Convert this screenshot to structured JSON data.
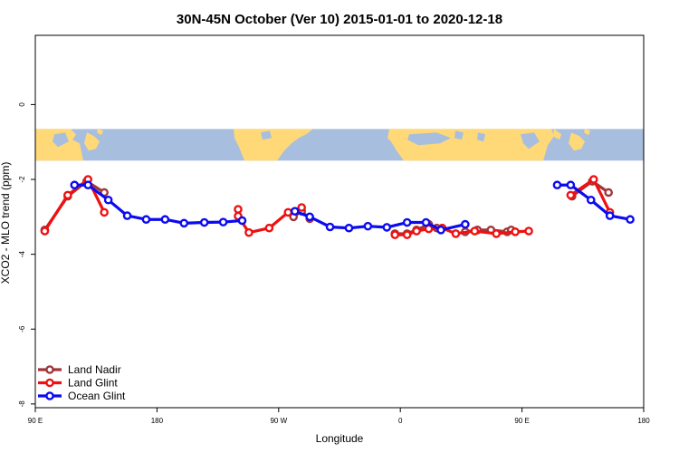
{
  "chart_data": {
    "type": "line",
    "title": "30N-45N October (Ver 10)   2015-01-01 to 2020-12-18",
    "xlabel": "Longitude",
    "ylabel": "XCO2 - MLO trend (ppm)",
    "xlim": [
      90,
      540
    ],
    "ylim": [
      -8.1,
      1.85
    ],
    "x_ticks": [
      {
        "value": 90,
        "label": "90 E"
      },
      {
        "value": 180,
        "label": "180"
      },
      {
        "value": 270,
        "label": "90 W"
      },
      {
        "value": 360,
        "label": "0"
      },
      {
        "value": 450,
        "label": "90 E"
      },
      {
        "value": 540,
        "label": "180"
      }
    ],
    "y_ticks": [
      {
        "value": 0,
        "label": "0"
      },
      {
        "value": -2,
        "label": "-2"
      },
      {
        "value": -4,
        "label": "-4"
      },
      {
        "value": -6,
        "label": "-6"
      },
      {
        "value": -8,
        "label": "-8"
      }
    ],
    "map_band": {
      "lat_range": "30N-45N",
      "y_top": -0.65,
      "y_bottom": -1.5,
      "ocean_color": "#a8bedf",
      "land_color": "#ffd878"
    },
    "legend": {
      "position": "bottom-left"
    },
    "series": [
      {
        "name": "Land Nadir",
        "color": "#a0363a",
        "segments": [
          [
            [
              97,
              -3.35
            ],
            [
              114,
              -2.45
            ],
            [
              128,
              -2.05
            ],
            [
              141,
              -2.35
            ]
          ],
          [
            [
              281,
              -3.0
            ],
            [
              287,
              -2.85
            ],
            [
              293,
              -3.05
            ]
          ],
          [
            [
              356,
              -3.45
            ],
            [
              365,
              -3.45
            ],
            [
              372,
              -3.35
            ],
            [
              381,
              -3.2
            ],
            [
              387,
              -3.3
            ]
          ],
          [
            [
              408,
              -3.4
            ],
            [
              417,
              -3.35
            ],
            [
              427,
              -3.35
            ],
            [
              439,
              -3.4
            ],
            [
              442,
              -3.35
            ]
          ],
          [
            [
              487,
              -2.45
            ],
            [
              502,
              -2.05
            ],
            [
              514,
              -2.35
            ]
          ]
        ]
      },
      {
        "name": "Land Glint",
        "color": "#ee1111",
        "segments": [
          [
            [
              97,
              -3.38
            ],
            [
              114,
              -2.42
            ],
            [
              129,
              -2.0
            ],
            [
              141,
              -2.88
            ]
          ],
          [
            [
              240,
              -2.8
            ]
          ],
          [
            [
              240,
              -2.98
            ],
            [
              248,
              -3.42
            ],
            [
              263,
              -3.3
            ],
            [
              277,
              -2.88
            ],
            [
              287,
              -2.75
            ]
          ],
          [
            [
              356,
              -3.48
            ],
            [
              365,
              -3.48
            ],
            [
              372,
              -3.38
            ],
            [
              381,
              -3.32
            ],
            [
              391,
              -3.3
            ],
            [
              401,
              -3.45
            ],
            [
              415,
              -3.38
            ],
            [
              431,
              -3.45
            ],
            [
              445,
              -3.4
            ],
            [
              455,
              -3.38
            ]
          ],
          [
            [
              486,
              -2.42
            ],
            [
              503,
              -2.0
            ],
            [
              515,
              -2.88
            ]
          ]
        ]
      },
      {
        "name": "Ocean Glint",
        "color": "#0b0bef",
        "segments": [
          [
            [
              119,
              -2.15
            ],
            [
              129,
              -2.15
            ],
            [
              144,
              -2.55
            ],
            [
              158,
              -2.97
            ],
            [
              172,
              -3.07
            ],
            [
              186,
              -3.07
            ],
            [
              200,
              -3.17
            ],
            [
              215,
              -3.15
            ],
            [
              229,
              -3.14
            ],
            [
              243,
              -3.1
            ]
          ],
          [
            [
              282,
              -2.85
            ],
            [
              293,
              -3.0
            ],
            [
              308,
              -3.27
            ],
            [
              322,
              -3.3
            ],
            [
              336,
              -3.25
            ],
            [
              350,
              -3.28
            ],
            [
              365,
              -3.15
            ],
            [
              379,
              -3.15
            ],
            [
              390,
              -3.35
            ],
            [
              408,
              -3.2
            ]
          ],
          [
            [
              476,
              -2.15
            ],
            [
              486,
              -2.15
            ],
            [
              501,
              -2.55
            ],
            [
              515,
              -2.97
            ],
            [
              530,
              -3.07
            ]
          ]
        ]
      }
    ]
  }
}
